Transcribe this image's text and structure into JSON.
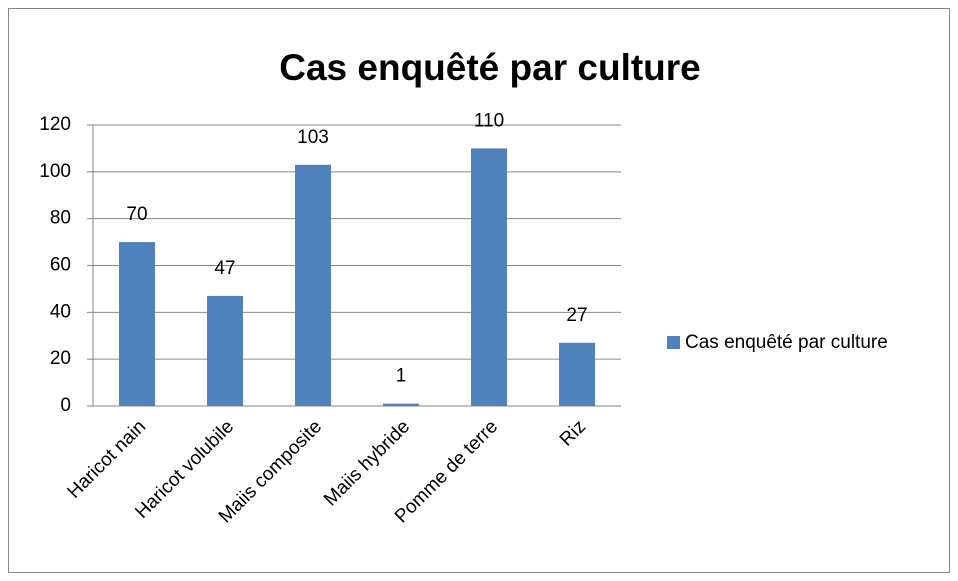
{
  "chart_data": {
    "type": "bar",
    "title": "Cas enquêté par culture",
    "categories": [
      "Haricot nain",
      "Haricot volubile",
      "Maiis composite",
      "Maiis hybride",
      "Pomme de terre",
      "Riz"
    ],
    "series": [
      {
        "name": "Cas enquêté par culture",
        "color": "#4f81bd",
        "values": [
          70,
          47,
          103,
          1,
          110,
          27
        ]
      }
    ],
    "ylim": [
      0,
      120
    ],
    "yticks": [
      0,
      20,
      40,
      60,
      80,
      100,
      120
    ],
    "grid": true,
    "legend": "right"
  }
}
